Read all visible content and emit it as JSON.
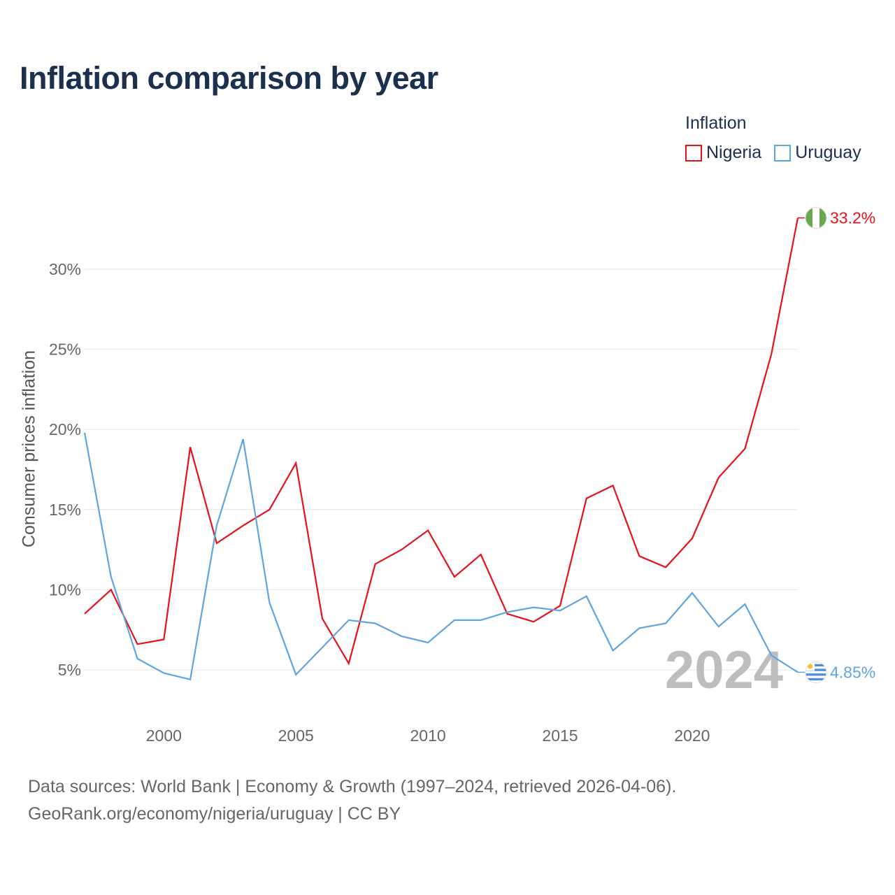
{
  "chart_data": {
    "type": "line",
    "title": "Inflation comparison by year",
    "ylabel": "Consumer prices inflation",
    "xlabel": "",
    "legend_title": "Inflation",
    "x": [
      1997,
      1998,
      1999,
      2000,
      2001,
      2002,
      2003,
      2004,
      2005,
      2006,
      2007,
      2008,
      2009,
      2010,
      2011,
      2012,
      2013,
      2014,
      2015,
      2016,
      2017,
      2018,
      2019,
      2020,
      2021,
      2022,
      2023,
      2024
    ],
    "xlim": [
      1997,
      2024
    ],
    "ylim": [
      2,
      35
    ],
    "x_ticks": [
      2000,
      2005,
      2010,
      2015,
      2020
    ],
    "y_ticks": [
      5,
      10,
      15,
      20,
      25,
      30
    ],
    "y_tick_labels": [
      "5%",
      "10%",
      "15%",
      "20%",
      "25%",
      "30%"
    ],
    "series": [
      {
        "name": "Nigeria",
        "color": "#e8101a",
        "end_label": "33.2%",
        "values": [
          8.5,
          10.0,
          6.6,
          6.9,
          18.9,
          12.9,
          14.0,
          15.0,
          17.9,
          8.2,
          5.4,
          11.6,
          12.5,
          13.7,
          10.8,
          12.2,
          8.5,
          8.0,
          9.0,
          15.7,
          16.5,
          12.1,
          11.4,
          13.2,
          17.0,
          18.8,
          24.7,
          33.2
        ]
      },
      {
        "name": "Uruguay",
        "color": "#5ea5e0",
        "end_label": "4.85%",
        "values": [
          19.8,
          10.8,
          5.7,
          4.8,
          4.4,
          14.0,
          19.4,
          9.2,
          4.7,
          6.4,
          8.1,
          7.9,
          7.1,
          6.7,
          8.1,
          8.1,
          8.6,
          8.9,
          8.7,
          9.6,
          6.2,
          7.6,
          7.9,
          9.8,
          7.7,
          9.1,
          5.9,
          4.85
        ]
      }
    ],
    "year_watermark": "2024",
    "grid": true
  },
  "footer": {
    "line1": "Data sources: World Bank | Economy & Growth (1997–2024, retrieved 2026-04-06).",
    "line2": "GeoRank.org/economy/nigeria/uruguay | CC BY"
  },
  "flag_colors": {
    "nigeria_green": "#6aa84f",
    "uruguay_blue": "#4a90e2",
    "uruguay_sun": "#f5c518"
  }
}
